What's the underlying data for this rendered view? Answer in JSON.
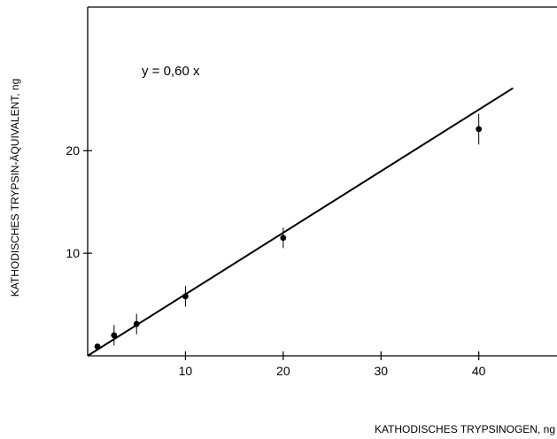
{
  "chart_data": {
    "type": "scatter",
    "title": "",
    "xlabel": "KATHODISCHES TRYPSINOGEN, ng",
    "ylabel": "KATHODISCHES TRYPSIN-ÄQUIVALENT, ng",
    "xlim": [
      0,
      48
    ],
    "ylim": [
      0,
      34
    ],
    "x_ticks": [
      10,
      20,
      30,
      40
    ],
    "y_ticks": [
      10,
      20
    ],
    "grid": false,
    "legend": "none",
    "annotation": "y = 0,60 x",
    "fit_line": {
      "slope": 0.6,
      "x_start": 0,
      "x_end": 43.5
    },
    "points": [
      {
        "x": 1,
        "y": 0.9,
        "err": 0
      },
      {
        "x": 2.7,
        "y": 2.0,
        "err": 1.0
      },
      {
        "x": 5,
        "y": 3.1,
        "err": 1.0
      },
      {
        "x": 10,
        "y": 5.8,
        "err": 1.0
      },
      {
        "x": 20,
        "y": 11.5,
        "err": 1.0
      },
      {
        "x": 40,
        "y": 22.1,
        "err": 1.5
      }
    ]
  }
}
